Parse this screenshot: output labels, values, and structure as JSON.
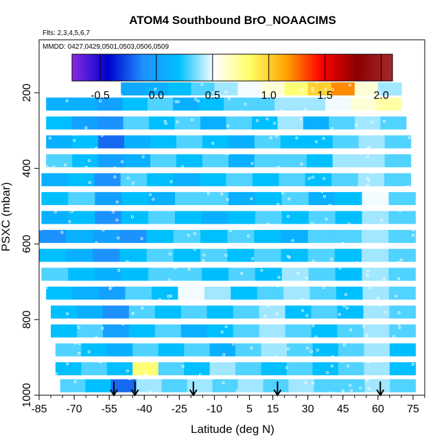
{
  "chart_data": {
    "type": "heatmap",
    "title": "ATOM4 Southbound BrO_NOAACIMS",
    "flights_note": "Flts: 2,3,4,5,6,7",
    "dates_note": "MMDD: 0427,0429,0501,0503,0506,0509",
    "xlabel": "Latitude (deg N)",
    "ylabel": "PSXC (mbar)",
    "xlim": [
      -85,
      80
    ],
    "ylim": [
      1000,
      60
    ],
    "x_ticks": [
      -85,
      -70,
      -55,
      -40,
      -25,
      -10,
      5,
      15,
      30,
      45,
      60,
      75
    ],
    "x_tick_labels": [
      "-85",
      "-70",
      "-55",
      "-40",
      "-25",
      "-10",
      "5",
      "15",
      "30",
      "45",
      "60",
      "75"
    ],
    "y_ticks": [
      200,
      400,
      600,
      800,
      1000
    ],
    "y_tick_labels": [
      "200",
      "400",
      "600",
      "800",
      "1000"
    ],
    "colorbar": {
      "range": [
        -0.75,
        2.1
      ],
      "ticks": [
        -0.5,
        0.0,
        0.5,
        1.0,
        1.5,
        2.0
      ],
      "tick_labels": [
        "-0.5",
        "0.0",
        "0.5",
        "1.0",
        "1.5",
        "2.0"
      ],
      "colors": [
        "#8a2be2",
        "#0000cd",
        "#1e90ff",
        "#00bfff",
        "#ffffff",
        "#ffff66",
        "#ffa500",
        "#ff0000",
        "#8b0000",
        "#a52a2a"
      ]
    },
    "arrow_latitudes": [
      -53,
      -44,
      -19,
      17,
      61
    ],
    "pressure_bins": [
      {
        "p": 190,
        "range": [
          -50,
          70
        ],
        "values": [
          0.05,
          0.1,
          0.2,
          0.3,
          0.4,
          0.5,
          0.6,
          0.8,
          1.0,
          1.2,
          0.6,
          0.4
        ]
      },
      {
        "p": 230,
        "range": [
          -82,
          70
        ],
        "values": [
          0.1,
          0.1,
          0.0,
          0.2,
          0.3,
          0.1,
          0.2,
          0.3,
          0.3,
          0.4,
          0.4,
          0.5,
          0.6,
          0.7
        ]
      },
      {
        "p": 280,
        "range": [
          -82,
          72
        ],
        "values": [
          0.2,
          0.0,
          -0.1,
          0.3,
          0.2,
          0.3,
          0.1,
          0.3,
          0.2,
          0.4,
          0.1,
          0.3,
          0.4,
          0.3
        ]
      },
      {
        "p": 330,
        "range": [
          -82,
          74
        ],
        "values": [
          0.1,
          0.2,
          -0.2,
          0.1,
          0.2,
          0.3,
          0.2,
          0.1,
          0.3,
          0.2,
          0.2,
          0.3,
          0.4,
          0.3
        ]
      },
      {
        "p": 380,
        "range": [
          -82,
          74
        ],
        "values": [
          0.3,
          0.2,
          0.0,
          0.1,
          0.3,
          0.2,
          0.3,
          0.1,
          0.3,
          0.3,
          0.2,
          0.4,
          0.4,
          0.3
        ]
      },
      {
        "p": 430,
        "range": [
          -84,
          74
        ],
        "values": [
          0.1,
          0.2,
          -0.1,
          0.3,
          0.2,
          0.1,
          0.2,
          0.3,
          0.2,
          0.3,
          0.2,
          0.3,
          0.4,
          0.3
        ]
      },
      {
        "p": 480,
        "range": [
          -84,
          76
        ],
        "values": [
          0.2,
          0.3,
          0.0,
          0.2,
          0.1,
          0.3,
          0.3,
          0.1,
          0.2,
          0.3,
          0.1,
          0.2,
          0.5,
          0.3
        ]
      },
      {
        "p": 530,
        "range": [
          -84,
          76
        ],
        "values": [
          0.1,
          0.2,
          -0.1,
          0.2,
          0.3,
          0.2,
          0.1,
          0.2,
          0.3,
          0.2,
          0.3,
          0.2,
          0.4,
          0.3
        ]
      },
      {
        "p": 580,
        "range": [
          -85,
          76
        ],
        "values": [
          -0.1,
          0.1,
          0.0,
          -0.1,
          0.2,
          0.3,
          0.2,
          0.3,
          0.2,
          0.1,
          0.3,
          0.3,
          0.4,
          0.3
        ]
      },
      {
        "p": 630,
        "range": [
          -85,
          76
        ],
        "values": [
          0.2,
          0.1,
          -0.1,
          0.2,
          0.3,
          0.2,
          0.3,
          0.2,
          0.3,
          0.2,
          0.3,
          0.2,
          0.4,
          0.3
        ]
      },
      {
        "p": 680,
        "range": [
          -84,
          76
        ],
        "values": [
          0.3,
          0.2,
          0.1,
          0.2,
          0.3,
          0.3,
          0.2,
          0.3,
          0.2,
          0.4,
          0.3,
          0.2,
          0.4,
          0.3
        ]
      },
      {
        "p": 730,
        "range": [
          -82,
          76
        ],
        "values": [
          0.2,
          0.1,
          0.0,
          0.3,
          0.2,
          0.5,
          0.4,
          0.2,
          0.3,
          0.4,
          0.3,
          0.2,
          0.4,
          0.3
        ]
      },
      {
        "p": 780,
        "range": [
          -80,
          76
        ],
        "values": [
          0.2,
          0.1,
          -0.1,
          0.3,
          0.2,
          0.3,
          0.2,
          0.3,
          0.4,
          0.2,
          0.3,
          0.2,
          0.4,
          0.3
        ]
      },
      {
        "p": 830,
        "range": [
          -80,
          76
        ],
        "values": [
          0.2,
          0.3,
          0.0,
          0.2,
          0.3,
          0.1,
          0.2,
          0.3,
          0.4,
          0.3,
          0.2,
          0.3,
          0.4,
          0.3
        ]
      },
      {
        "p": 880,
        "range": [
          -78,
          76
        ],
        "values": [
          0.3,
          0.2,
          0.1,
          0.3,
          0.2,
          0.3,
          0.1,
          0.3,
          0.4,
          0.3,
          0.2,
          0.3,
          0.4,
          0.2
        ]
      },
      {
        "p": 930,
        "range": [
          -78,
          76
        ],
        "values": [
          0.2,
          0.3,
          0.2,
          0.8,
          0.3,
          0.2,
          0.4,
          0.3,
          0.2,
          0.3,
          0.2,
          0.3,
          0.4,
          0.2
        ]
      },
      {
        "p": 975,
        "range": [
          -76,
          76
        ],
        "values": [
          0.3,
          0.2,
          -0.2,
          0.4,
          0.3,
          0.4,
          0.3,
          0.4,
          0.3,
          0.4,
          0.3,
          0.3,
          0.4,
          0.3
        ]
      }
    ]
  }
}
